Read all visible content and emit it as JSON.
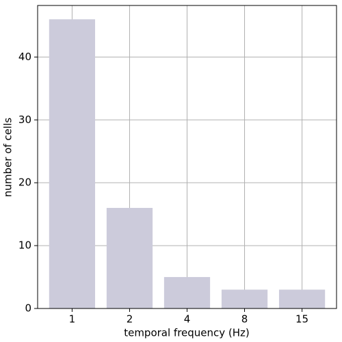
{
  "chart_data": {
    "type": "bar",
    "categories": [
      "1",
      "2",
      "4",
      "8",
      "15"
    ],
    "values": [
      46,
      16,
      5,
      3,
      3
    ],
    "color": "#cccbdb",
    "ylim": [
      0,
      48.2
    ],
    "yticks": [
      0,
      10,
      20,
      30,
      40
    ],
    "grid": true,
    "xlabel": "temporal frequency (Hz)",
    "ylabel": "number of cells"
  }
}
